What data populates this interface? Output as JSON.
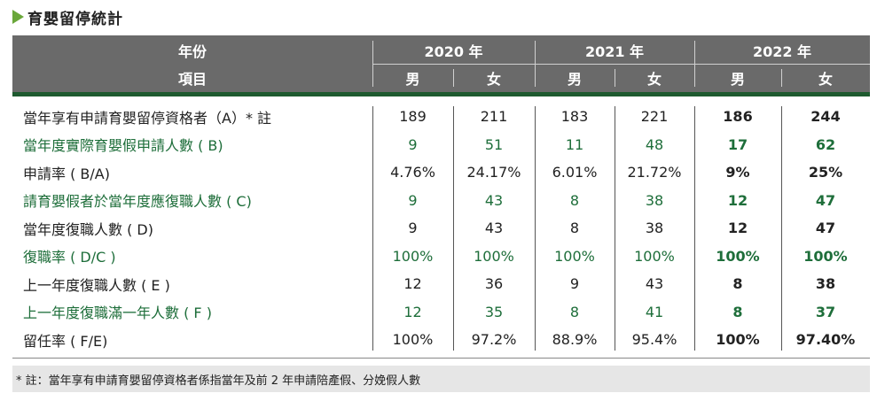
{
  "title": "育嬰留停統計",
  "header": {
    "year_label": "年份",
    "item_label": "項目",
    "years": [
      "2020 年",
      "2021 年",
      "2022 年"
    ],
    "male": "男",
    "female": "女"
  },
  "rows": [
    {
      "label": "當年享有申請育嬰留停資格者（A）* 註",
      "green": false,
      "values": [
        "189",
        "211",
        "183",
        "221",
        "186",
        "244"
      ]
    },
    {
      "label": "當年度實際育嬰假申請人數 ( B)",
      "green": true,
      "values": [
        "9",
        "51",
        "11",
        "48",
        "17",
        "62"
      ]
    },
    {
      "label": "申請率 ( B/A)",
      "green": false,
      "values": [
        "4.76%",
        "24.17%",
        "6.01%",
        "21.72%",
        "9%",
        "25%"
      ]
    },
    {
      "label": "請育嬰假者於當年度應復職人數 ( C)",
      "green": true,
      "values": [
        "9",
        "43",
        "8",
        "38",
        "12",
        "47"
      ]
    },
    {
      "label": "當年度復職人數 ( D)",
      "green": false,
      "values": [
        "9",
        "43",
        "8",
        "38",
        "12",
        "47"
      ]
    },
    {
      "label": "復職率 ( D/C )",
      "green": true,
      "values": [
        "100%",
        "100%",
        "100%",
        "100%",
        "100%",
        "100%"
      ]
    },
    {
      "label": "上一年度復職人數 ( E )",
      "green": false,
      "values": [
        "12",
        "36",
        "9",
        "43",
        "8",
        "38"
      ]
    },
    {
      "label": "上一年度復職滿一年人數 ( F )",
      "green": true,
      "values": [
        "12",
        "35",
        "8",
        "41",
        "8",
        "37"
      ]
    },
    {
      "label": "留任率 ( F/E)",
      "green": false,
      "values": [
        "100%",
        "97.2%",
        "88.9%",
        "95.4%",
        "100%",
        "97.40%"
      ]
    }
  ],
  "footnote": "* 註：當年享有申請育嬰留停資格者係指當年及前 2 年申請陪產假、分娩假人數",
  "colors": {
    "header_bg": "#6a6a6a",
    "header_rule": "#1e5a2f",
    "accent_green": "#1e6e3a",
    "title_arrow": "#6aa73a",
    "footnote_bg": "#e6e6e6"
  }
}
